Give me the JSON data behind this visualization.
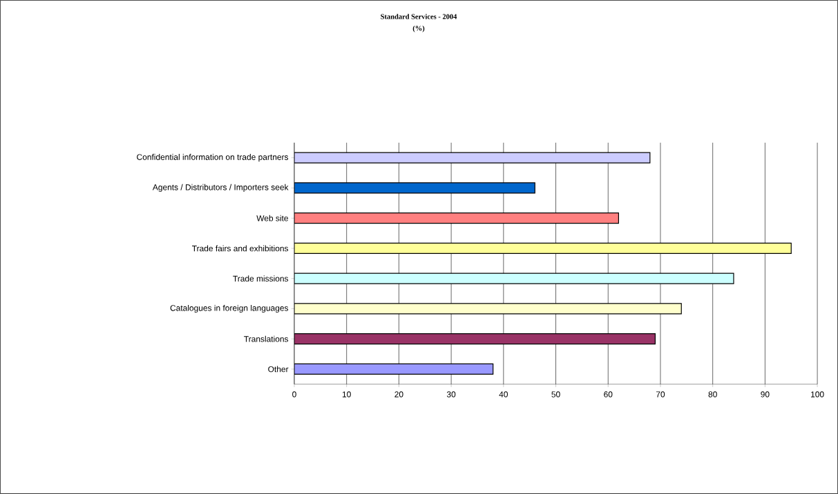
{
  "chart_data": {
    "type": "bar",
    "orientation": "horizontal",
    "title": "Standard Services  - 2004",
    "subtitle": "(%)",
    "categories": [
      "Confidential information on trade partners",
      "Agents / Distributors / Importers seek",
      "Web site",
      "Trade fairs and exhibitions",
      "Trade missions",
      "Catalogues in foreign languages",
      "Translations",
      "Other"
    ],
    "values": [
      68,
      46,
      62,
      95,
      84,
      74,
      69,
      38
    ],
    "colors": [
      "#ccccff",
      "#0066cc",
      "#ff8080",
      "#ffff99",
      "#ccffff",
      "#ffffcc",
      "#993366",
      "#9999ff"
    ],
    "xlim": [
      0,
      100
    ],
    "xticks": [
      0,
      10,
      20,
      30,
      40,
      50,
      60,
      70,
      80,
      90,
      100
    ],
    "grid": "x"
  }
}
